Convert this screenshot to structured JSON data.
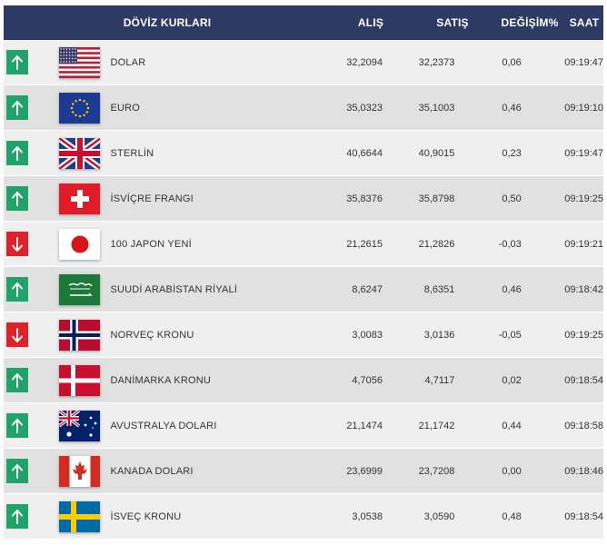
{
  "table": {
    "headers": {
      "title": "DÖVİZ KURLARI",
      "buy": "ALIŞ",
      "sell": "SATIŞ",
      "change": "DEĞİŞİM%",
      "time": "SAAT"
    },
    "rows": [
      {
        "trend": "up",
        "flag": "us-flag-icon",
        "name": "DOLAR",
        "buy": "32,2094",
        "sell": "32,2373",
        "change": "0,06",
        "time": "09:19:47"
      },
      {
        "trend": "up",
        "flag": "eu-flag-icon",
        "name": "EURO",
        "buy": "35,0323",
        "sell": "35,1003",
        "change": "0,46",
        "time": "09:19:10"
      },
      {
        "trend": "up",
        "flag": "uk-flag-icon",
        "name": "STERLİN",
        "buy": "40,6644",
        "sell": "40,9015",
        "change": "0,23",
        "time": "09:19:47"
      },
      {
        "trend": "up",
        "flag": "swiss-flag-icon",
        "name": "İSVİÇRE FRANGI",
        "buy": "35,8376",
        "sell": "35,8798",
        "change": "0,50",
        "time": "09:19:25"
      },
      {
        "trend": "down",
        "flag": "japan-flag-icon",
        "name": "100 JAPON YENİ",
        "buy": "21,2615",
        "sell": "21,2826",
        "change": "-0,03",
        "time": "09:19:21"
      },
      {
        "trend": "up",
        "flag": "saudi-flag-icon",
        "name": "SUUDİ ARABİSTAN RİYALİ",
        "buy": "8,6247",
        "sell": "8,6351",
        "change": "0,46",
        "time": "09:18:42"
      },
      {
        "trend": "down",
        "flag": "norway-flag-icon",
        "name": "NORVEÇ KRONU",
        "buy": "3,0083",
        "sell": "3,0136",
        "change": "-0,05",
        "time": "09:19:25"
      },
      {
        "trend": "up",
        "flag": "denmark-flag-icon",
        "name": "DANİMARKA KRONU",
        "buy": "4,7056",
        "sell": "4,7117",
        "change": "0,02",
        "time": "09:18:54"
      },
      {
        "trend": "up",
        "flag": "australia-flag-icon",
        "name": "AVUSTRALYA DOLARI",
        "buy": "21,1474",
        "sell": "21,1742",
        "change": "0,44",
        "time": "09:18:58"
      },
      {
        "trend": "up",
        "flag": "canada-flag-icon",
        "name": "KANADA DOLARI",
        "buy": "23,6999",
        "sell": "23,7208",
        "change": "0,00",
        "time": "09:18:46"
      },
      {
        "trend": "up",
        "flag": "sweden-flag-icon",
        "name": "İSVEÇ KRONU",
        "buy": "3,0538",
        "sell": "3,0590",
        "change": "0,48",
        "time": "09:18:54"
      }
    ]
  },
  "colors": {
    "header_bg": "#2d3a63",
    "up": "#1fa36b",
    "down": "#e2202a",
    "row_light": "#efefef",
    "row_dark": "#e1e1e1"
  }
}
